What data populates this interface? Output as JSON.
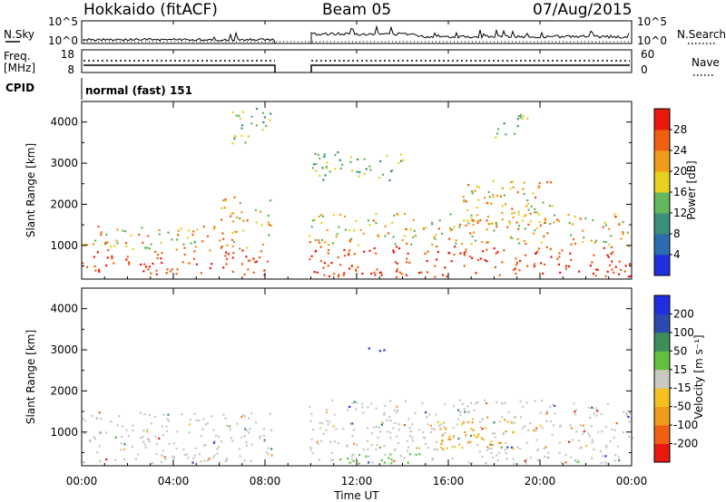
{
  "header": {
    "station": "Hokkaido (fitACF)",
    "beam": "Beam 05",
    "date": "07/Aug/2015"
  },
  "panels": {
    "nsky": {
      "label": "N.Sky",
      "right_label": "N.Search",
      "left_ticks": [
        "10^5",
        "10^0"
      ],
      "right_ticks": [
        "10^5",
        "10^0"
      ]
    },
    "freq": {
      "label_line1": "Freq.",
      "label_line2": "[MHz]",
      "right_label": "Nave",
      "left_ticks": [
        "18",
        "8"
      ],
      "right_ticks": [
        "60",
        "0"
      ]
    },
    "cpid": {
      "label": "CPID",
      "mode": "normal (fast) 151"
    }
  },
  "chart_data": [
    {
      "type": "heatmap",
      "panel": "power",
      "ylabel": "Slant Range [km]",
      "xlabel": "",
      "xlim": [
        "00:00",
        "24:00"
      ],
      "ylim": [
        180,
        4500
      ],
      "yticks": [
        1000,
        2000,
        3000,
        4000
      ],
      "data_gap": [
        "08:30",
        "09:50"
      ],
      "colorbar": {
        "label": "Power [dB]",
        "ticks": [
          4,
          8,
          12,
          16,
          20,
          24,
          28
        ],
        "range": [
          0,
          30
        ],
        "colors": [
          "#1f2fe0",
          "#2b6db0",
          "#3c8f7a",
          "#62b85a",
          "#e8d020",
          "#f29a1a",
          "#f06010",
          "#e81a10"
        ]
      },
      "echo_regions": [
        {
          "t": [
            0.0,
            8.3
          ],
          "r": [
            300,
            900
          ],
          "level": "high"
        },
        {
          "t": [
            0.0,
            8.3
          ],
          "r": [
            900,
            1500
          ],
          "level": "medium"
        },
        {
          "t": [
            6.0,
            8.3
          ],
          "r": [
            1500,
            2200
          ],
          "level": "medium"
        },
        {
          "t": [
            9.9,
            24.0
          ],
          "r": [
            250,
            1000
          ],
          "level": "high"
        },
        {
          "t": [
            9.9,
            24.0
          ],
          "r": [
            1000,
            1800
          ],
          "level": "medium"
        },
        {
          "t": [
            16.5,
            20.5
          ],
          "r": [
            1500,
            2600
          ],
          "level": "medium"
        },
        {
          "t": [
            10.0,
            14.0
          ],
          "r": [
            2600,
            3300
          ],
          "level": "low"
        },
        {
          "t": [
            18.0,
            19.5
          ],
          "r": [
            3600,
            4200
          ],
          "level": "low"
        },
        {
          "t": [
            6.5,
            8.3
          ],
          "r": [
            3500,
            4400
          ],
          "level": "low"
        }
      ]
    },
    {
      "type": "heatmap",
      "panel": "velocity",
      "ylabel": "Slant Range [km]",
      "xlabel": "Time UT",
      "xlim": [
        "00:00",
        "24:00"
      ],
      "xticks": [
        "00:00",
        "04:00",
        "08:00",
        "12:00",
        "16:00",
        "20:00",
        "00:00"
      ],
      "ylim": [
        180,
        4500
      ],
      "yticks": [
        1000,
        2000,
        3000,
        4000
      ],
      "data_gap": [
        "08:30",
        "09:50"
      ],
      "colorbar": {
        "label": "Velocity [m s⁻¹]",
        "ticks": [
          "-200",
          "-100",
          "-50",
          "-15",
          "15",
          "50",
          "100",
          "200"
        ],
        "colors": [
          "#e81a10",
          "#f06010",
          "#f29a1a",
          "#f5c020",
          "#c8c8c0",
          "#62c040",
          "#3c8f5a",
          "#2b4ab0",
          "#1f2fe0"
        ]
      },
      "echo_regions": [
        {
          "t": [
            0.0,
            8.3
          ],
          "r": [
            250,
            900
          ],
          "level": "ground"
        },
        {
          "t": [
            0.0,
            8.3
          ],
          "r": [
            900,
            1500
          ],
          "level": "ground"
        },
        {
          "t": [
            9.9,
            24.0
          ],
          "r": [
            250,
            1000
          ],
          "level": "ground"
        },
        {
          "t": [
            9.9,
            24.0
          ],
          "r": [
            1000,
            1800
          ],
          "level": "ground"
        },
        {
          "t": [
            15.5,
            19.0
          ],
          "r": [
            600,
            1400
          ],
          "level": "negative"
        },
        {
          "t": [
            11.0,
            15.0
          ],
          "r": [
            250,
            500
          ],
          "level": "positive-green"
        },
        {
          "t": [
            12.5,
            13.5
          ],
          "r": [
            2900,
            3100
          ],
          "level": "positive-blue"
        }
      ]
    }
  ],
  "colors": {
    "axis": "#000000",
    "background": "#ffffff"
  }
}
